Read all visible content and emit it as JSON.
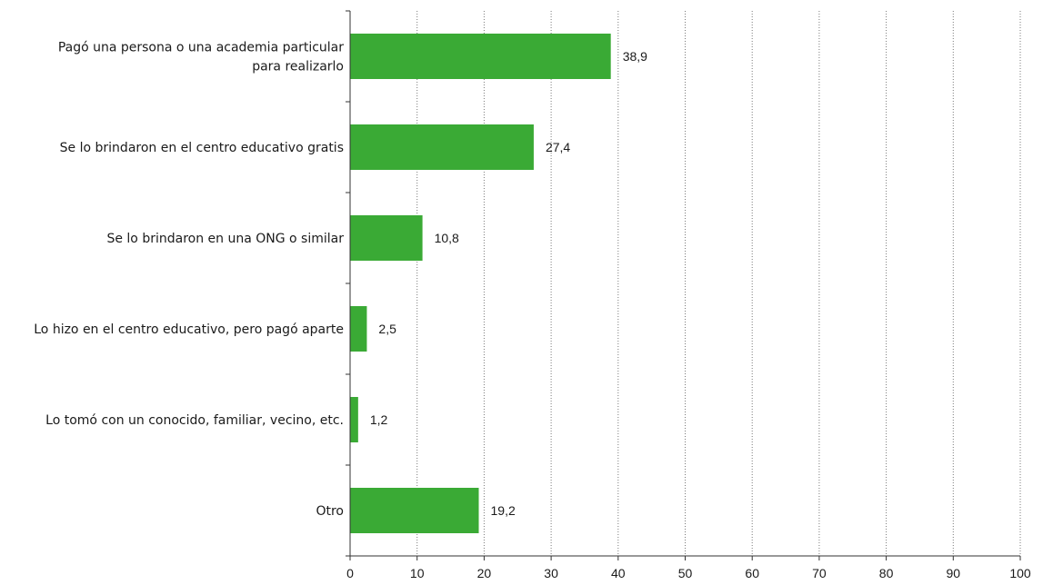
{
  "chart_data": {
    "type": "bar",
    "orientation": "horizontal",
    "categories": [
      "Pagó una persona o una academia particular para realizarlo",
      "Se lo brindaron en el centro educativo gratis",
      "Se lo brindaron en una ONG o similar",
      "Lo hizo en el centro educativo, pero pagó aparte",
      "Lo tomó con un conocido, familiar, vecino, etc.",
      "Otro"
    ],
    "category_lines": [
      [
        "Pagó una persona o una academia particular",
        "para realizarlo"
      ],
      [
        "Se lo brindaron en el centro educativo gratis"
      ],
      [
        "Se lo brindaron en una ONG o similar"
      ],
      [
        "Lo hizo en el centro educativo, pero pagó aparte"
      ],
      [
        "Lo tomó con un conocido, familiar, vecino, etc."
      ],
      [
        "Otro"
      ]
    ],
    "values": [
      38.9,
      27.4,
      10.8,
      2.5,
      1.2,
      19.2
    ],
    "value_labels": [
      "38,9",
      "27,4",
      "10,8",
      "2,5",
      "1,2",
      "19,2"
    ],
    "xlim": [
      0,
      100
    ],
    "x_ticks": [
      0,
      10,
      20,
      30,
      40,
      50,
      60,
      70,
      80,
      90,
      100
    ],
    "x_tick_labels": [
      "0",
      "10",
      "20",
      "30",
      "40",
      "50",
      "60",
      "70",
      "80",
      "90",
      "100"
    ],
    "grid": "vertical dotted",
    "bar_color": "#3aaa35",
    "title": "",
    "xlabel": "",
    "ylabel": ""
  }
}
